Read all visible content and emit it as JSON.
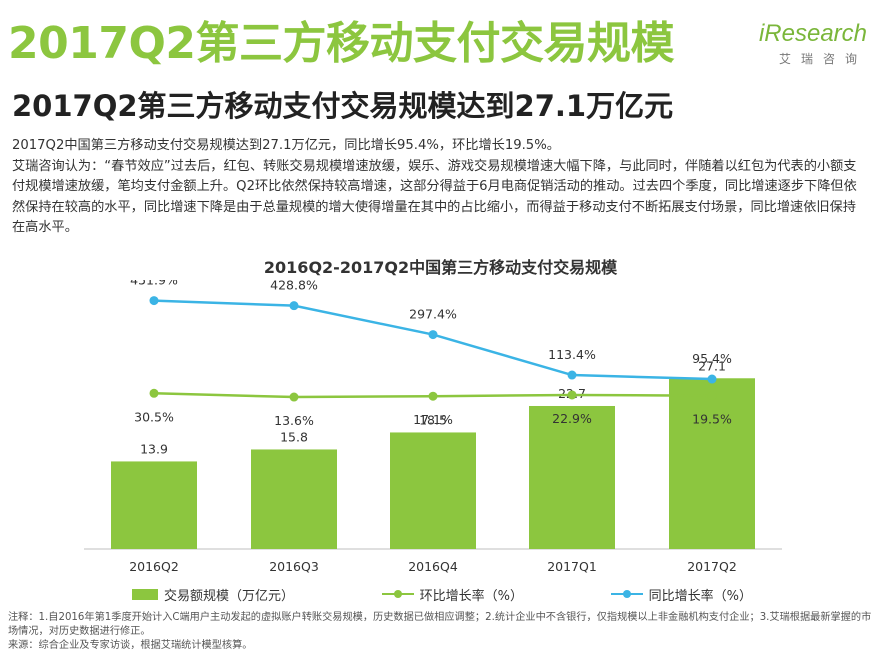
{
  "header": {
    "title": "2017Q2第三方移动支付交易规模",
    "subtitle": "2017Q2第三方移动支付交易规模达到27.1万亿元"
  },
  "logo": {
    "brand": "iResearch",
    "cn": "艾瑞咨询"
  },
  "body": {
    "para1": "2017Q2中国第三方移动支付交易规模达到27.1万亿元，同比增长95.4%，环比增长19.5%。",
    "para2": "艾瑞咨询认为：“春节效应”过去后，红包、转账交易规模增速放缓，娱乐、游戏交易规模增速大幅下降，与此同时，伴随着以红包为代表的小额支付规模增速放缓，笔均支付金额上升。Q2环比依然保持较高增速，这部分得益于6月电商促销活动的推动。过去四个季度，同比增速逐步下降但依然保持在较高的水平，同比增速下降是由于总量规模的增大使得增量在其中的占比缩小，而得益于移动支付不断拓展支付场景，同比增速依旧保持在高水平。"
  },
  "colors": {
    "bar": "#8cc63f",
    "qoq": "#8cc63f",
    "yoy": "#3bb4e5",
    "title_green": "#8cc63f"
  },
  "chart_data": {
    "type": "bar",
    "title": "2016Q2-2017Q2中国第三方移动支付交易规模",
    "categories": [
      "2016Q2",
      "2016Q3",
      "2016Q4",
      "2017Q1",
      "2017Q2"
    ],
    "series": [
      {
        "name": "交易额规模（万亿元）",
        "type": "bar",
        "values": [
          13.9,
          15.8,
          18.5,
          22.7,
          27.1
        ],
        "labels": [
          "13.9",
          "15.8",
          "18.5",
          "22.7",
          "27.1"
        ]
      },
      {
        "name": "环比增长率（%）",
        "type": "line",
        "values": [
          30.5,
          13.6,
          17.1,
          22.9,
          19.5
        ],
        "labels": [
          "30.5%",
          "13.6%",
          "17.1%",
          "22.9%",
          "19.5%"
        ]
      },
      {
        "name": "同比增长率（%）",
        "type": "line",
        "values": [
          451.9,
          428.8,
          297.4,
          113.4,
          95.4
        ],
        "labels": [
          "451.9%",
          "428.8%",
          "297.4%",
          "113.4%",
          "95.4%"
        ]
      }
    ],
    "bar_ylim": [
      0,
      30
    ],
    "yoy_ylim": [
      0,
      500
    ],
    "qoq_ylim": [
      0,
      500
    ],
    "legend_position": "bottom"
  },
  "footnotes": {
    "note": "注释：1.自2016年第1季度开始计入C端用户主动发起的虚拟账户转账交易规模，历史数据已做相应调整；2.统计企业中不含银行，仅指规模以上非金融机构支付企业；3.艾瑞根据最新掌握的市场情况，对历史数据进行修正。",
    "source": "来源：综合企业及专家访谈，根据艾瑞统计模型核算。"
  }
}
